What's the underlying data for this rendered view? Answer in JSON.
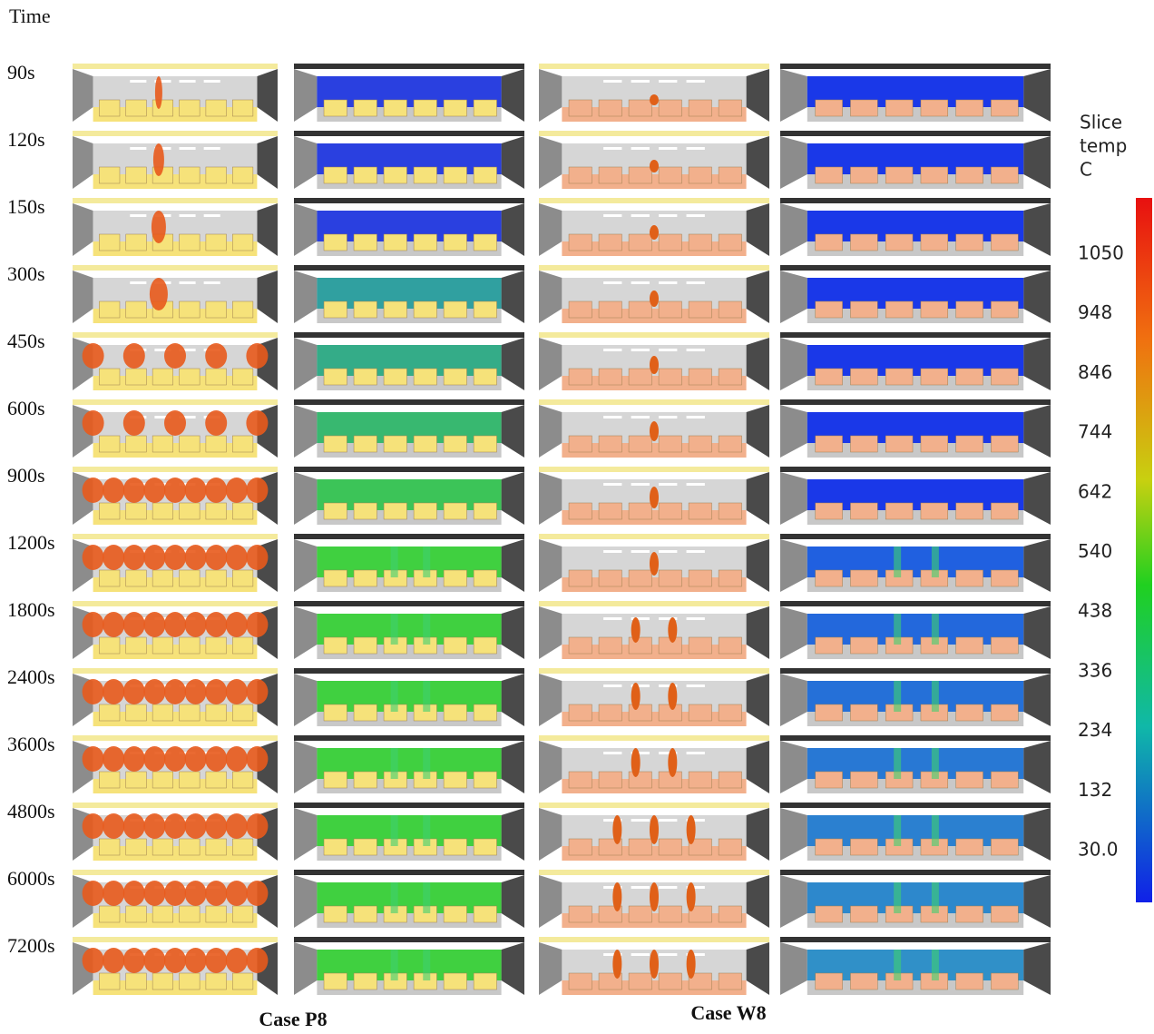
{
  "header": {
    "title": "Time"
  },
  "rows": [
    "90s",
    "120s",
    "150s",
    "300s",
    "450s",
    "600s",
    "900s",
    "1200s",
    "1800s",
    "2400s",
    "3600s",
    "4800s",
    "6000s",
    "7200s"
  ],
  "cases": [
    "Case P8",
    "Case W8"
  ],
  "colorbar": {
    "title": [
      "Slice",
      "temp",
      "C"
    ],
    "ticks": [
      "1050",
      "948",
      "846",
      "744",
      "642",
      "540",
      "438",
      "336",
      "234",
      "132",
      "30.0"
    ]
  }
}
